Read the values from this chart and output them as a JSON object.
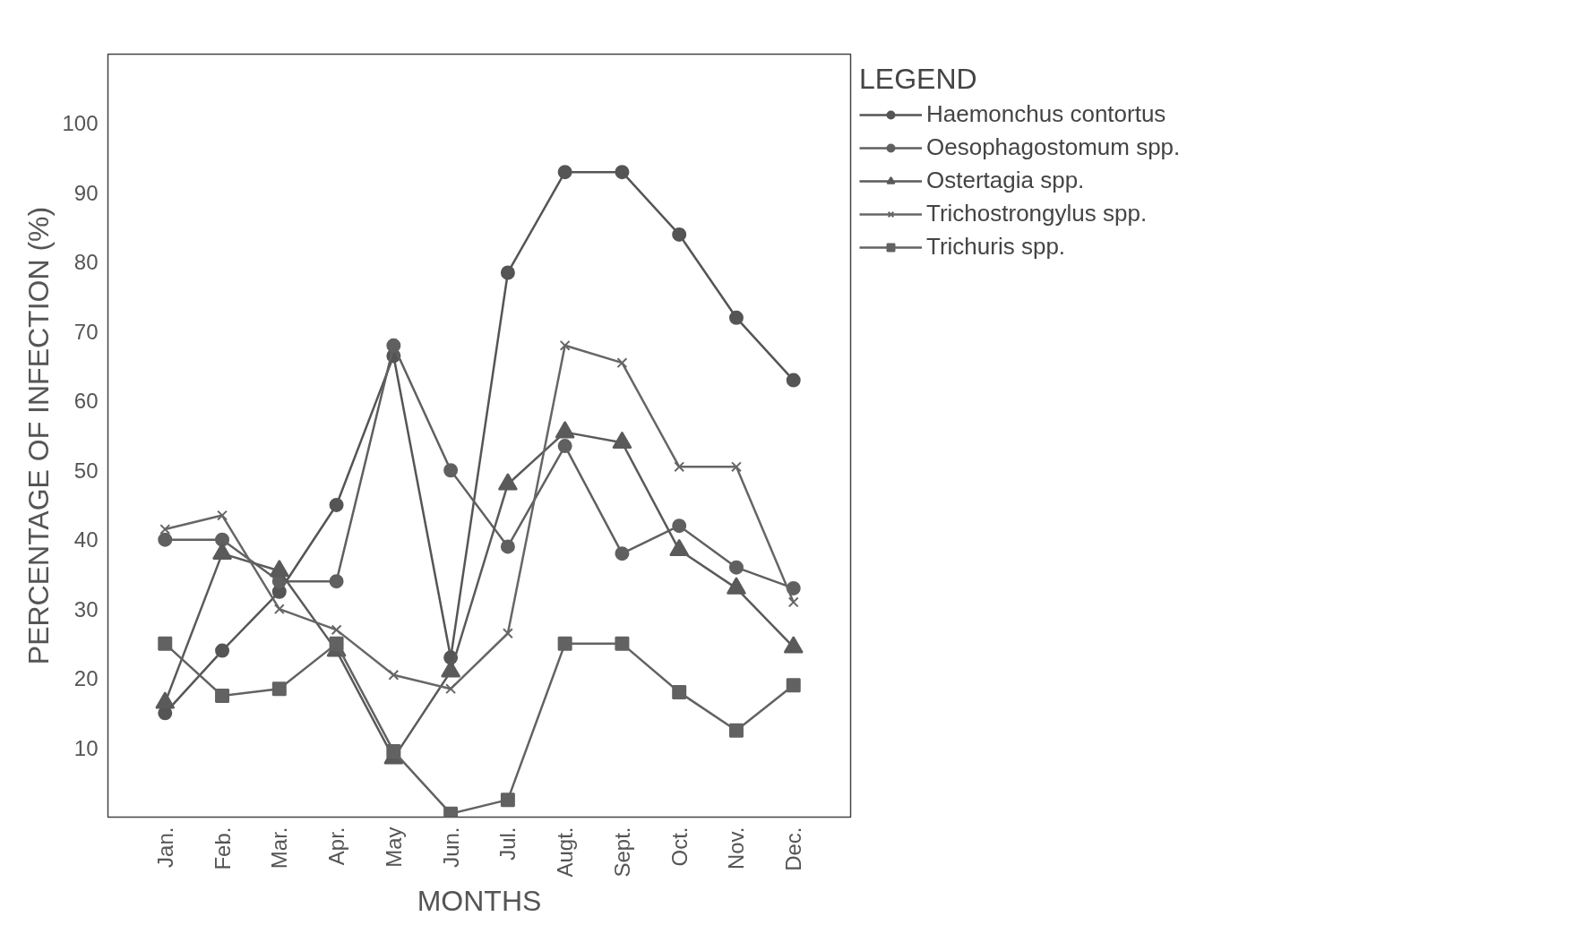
{
  "chart_data": {
    "type": "line",
    "xlabel": "MONTHS",
    "ylabel": "PERCENTAGE OF INFECTION (%)",
    "legend_title": "LEGEND",
    "categories": [
      "Jan.",
      "Feb.",
      "Mar.",
      "Apr.",
      "May",
      "Jun.",
      "Jul.",
      "Augt.",
      "Sept.",
      "Oct.",
      "Nov.",
      "Dec."
    ],
    "ylim": [
      0,
      110
    ],
    "yticks": [
      10,
      20,
      30,
      40,
      50,
      60,
      70,
      80,
      90,
      100
    ],
    "grid": false,
    "legend": "top right",
    "line_style": "solid",
    "series": [
      {
        "name": "Haemonchus contortus",
        "color": "#555555",
        "marker": "circle",
        "values": [
          15,
          24,
          32.5,
          45,
          66.5,
          23,
          78.5,
          93,
          93,
          84,
          72,
          63
        ]
      },
      {
        "name": "Oesophagostomum spp.",
        "color": "#606060",
        "marker": "circle",
        "values": [
          40,
          40,
          34,
          34,
          68,
          50,
          39,
          53.5,
          38,
          42,
          36,
          33
        ]
      },
      {
        "name": "Ostertagia spp.",
        "color": "#5a5a5a",
        "marker": "triangle",
        "values": [
          16.5,
          38,
          35.5,
          24,
          8.5,
          21,
          48,
          55.5,
          54,
          38.5,
          33,
          24.5
        ]
      },
      {
        "name": "Trichostrongylus spp.",
        "color": "#666666",
        "marker": "cross",
        "values": [
          41.5,
          43.5,
          30,
          27,
          20.5,
          18.5,
          26.5,
          68,
          65.5,
          50.5,
          50.5,
          31
        ]
      },
      {
        "name": "Trichuris spp.",
        "color": "#626262",
        "marker": "square",
        "values": [
          25,
          17.5,
          18.5,
          25,
          9.5,
          0.5,
          2.5,
          25,
          25,
          18,
          12.5,
          19
        ]
      }
    ]
  }
}
